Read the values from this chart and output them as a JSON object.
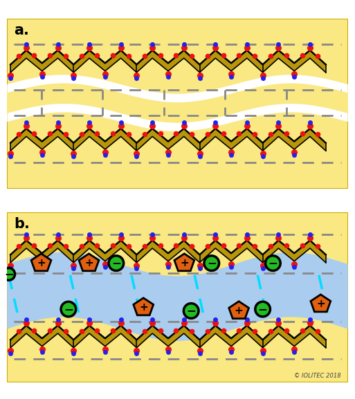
{
  "fig_width": 5.13,
  "fig_height": 5.77,
  "dpi": 100,
  "yellow_bg": "#FAE882",
  "cellulose_fill": "#B8960C",
  "cellulose_edge": "#000000",
  "red_dot": "#EE1111",
  "blue_dot": "#2222EE",
  "gray_dash": "#888888",
  "cyan_dash": "#00DDFF",
  "ionic_bg": "#AACCEE",
  "cation_fill": "#E06010",
  "anion_fill": "#22BB22",
  "white_wave": "#FFFFFF",
  "label_a": "a.",
  "label_b": "b.",
  "copyright": "© IOLITEC 2018"
}
